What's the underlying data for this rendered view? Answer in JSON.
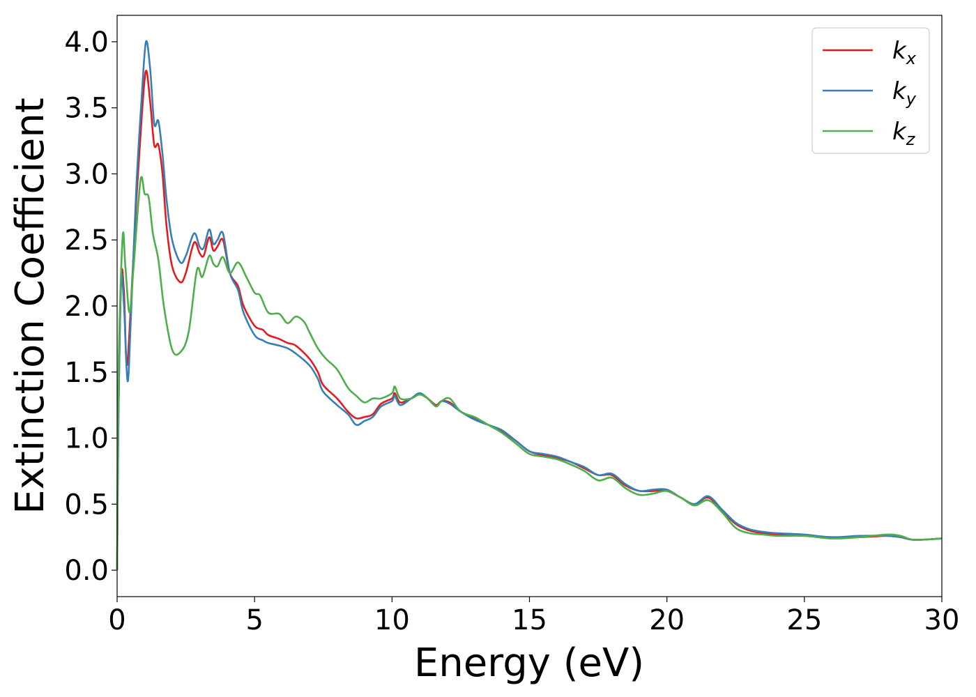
{
  "chart_data": {
    "type": "line",
    "xlabel": "Energy (eV)",
    "ylabel": "Extinction Coefficient",
    "xlim": [
      0,
      30
    ],
    "ylim": [
      -0.2,
      4.2
    ],
    "x_ticks": [
      "0",
      "5",
      "10",
      "15",
      "20",
      "25",
      "30"
    ],
    "x_tick_values": [
      0,
      5,
      10,
      15,
      20,
      25,
      30
    ],
    "y_ticks": [
      "0.0",
      "0.5",
      "1.0",
      "1.5",
      "2.0",
      "2.5",
      "3.0",
      "3.5",
      "4.0"
    ],
    "y_tick_values": [
      0,
      0.5,
      1.0,
      1.5,
      2.0,
      2.5,
      3.0,
      3.5,
      4.0
    ],
    "grid": false,
    "legend_position": "top-right",
    "series": [
      {
        "name": "k_x",
        "legend_main": "k",
        "legend_sub": "x",
        "color": "#e41a1c",
        "points": [
          [
            0,
            0
          ],
          [
            0.05,
            1.2
          ],
          [
            0.15,
            2.22
          ],
          [
            0.25,
            2.1
          ],
          [
            0.35,
            1.55
          ],
          [
            0.5,
            2.0
          ],
          [
            0.7,
            2.8
          ],
          [
            0.9,
            3.45
          ],
          [
            1.05,
            3.78
          ],
          [
            1.2,
            3.55
          ],
          [
            1.35,
            3.22
          ],
          [
            1.5,
            3.22
          ],
          [
            1.65,
            3.0
          ],
          [
            1.8,
            2.6
          ],
          [
            2.0,
            2.3
          ],
          [
            2.3,
            2.18
          ],
          [
            2.5,
            2.25
          ],
          [
            2.8,
            2.48
          ],
          [
            3.0,
            2.4
          ],
          [
            3.15,
            2.38
          ],
          [
            3.35,
            2.52
          ],
          [
            3.5,
            2.42
          ],
          [
            3.65,
            2.45
          ],
          [
            3.85,
            2.5
          ],
          [
            4.1,
            2.25
          ],
          [
            4.4,
            2.15
          ],
          [
            4.6,
            2.0
          ],
          [
            5.0,
            1.85
          ],
          [
            5.3,
            1.82
          ],
          [
            5.5,
            1.78
          ],
          [
            5.9,
            1.75
          ],
          [
            6.2,
            1.72
          ],
          [
            6.5,
            1.7
          ],
          [
            7.0,
            1.6
          ],
          [
            7.3,
            1.5
          ],
          [
            7.5,
            1.4
          ],
          [
            8.0,
            1.3
          ],
          [
            8.4,
            1.2
          ],
          [
            8.7,
            1.15
          ],
          [
            9.0,
            1.16
          ],
          [
            9.3,
            1.18
          ],
          [
            9.6,
            1.26
          ],
          [
            10.0,
            1.3
          ],
          [
            10.1,
            1.34
          ],
          [
            10.3,
            1.27
          ],
          [
            10.7,
            1.3
          ],
          [
            11.0,
            1.33
          ],
          [
            11.3,
            1.3
          ],
          [
            11.6,
            1.25
          ],
          [
            11.8,
            1.28
          ],
          [
            12.1,
            1.27
          ],
          [
            12.5,
            1.2
          ],
          [
            13.0,
            1.15
          ],
          [
            13.5,
            1.1
          ],
          [
            14.0,
            1.05
          ],
          [
            14.5,
            0.98
          ],
          [
            15.0,
            0.9
          ],
          [
            15.5,
            0.87
          ],
          [
            16.0,
            0.85
          ],
          [
            16.5,
            0.82
          ],
          [
            17.0,
            0.77
          ],
          [
            17.5,
            0.72
          ],
          [
            18.0,
            0.72
          ],
          [
            18.5,
            0.64
          ],
          [
            19.0,
            0.6
          ],
          [
            19.5,
            0.6
          ],
          [
            20.0,
            0.6
          ],
          [
            20.5,
            0.55
          ],
          [
            21.0,
            0.5
          ],
          [
            21.5,
            0.55
          ],
          [
            22.0,
            0.45
          ],
          [
            22.5,
            0.35
          ],
          [
            23.0,
            0.3
          ],
          [
            23.5,
            0.28
          ],
          [
            24.0,
            0.27
          ],
          [
            25.0,
            0.26
          ],
          [
            26.0,
            0.25
          ],
          [
            27.0,
            0.25
          ],
          [
            28.0,
            0.26
          ],
          [
            28.5,
            0.25
          ],
          [
            29.0,
            0.23
          ],
          [
            30.0,
            0.24
          ]
        ]
      },
      {
        "name": "k_y",
        "legend_main": "k",
        "legend_sub": "y",
        "color": "#377eb8",
        "points": [
          [
            0,
            0
          ],
          [
            0.05,
            1.2
          ],
          [
            0.15,
            2.2
          ],
          [
            0.25,
            2.0
          ],
          [
            0.38,
            1.43
          ],
          [
            0.5,
            1.9
          ],
          [
            0.7,
            2.9
          ],
          [
            0.9,
            3.6
          ],
          [
            1.05,
            4.0
          ],
          [
            1.2,
            3.8
          ],
          [
            1.35,
            3.38
          ],
          [
            1.5,
            3.4
          ],
          [
            1.65,
            3.15
          ],
          [
            1.8,
            2.8
          ],
          [
            2.0,
            2.5
          ],
          [
            2.3,
            2.33
          ],
          [
            2.5,
            2.38
          ],
          [
            2.8,
            2.55
          ],
          [
            3.0,
            2.45
          ],
          [
            3.15,
            2.44
          ],
          [
            3.35,
            2.58
          ],
          [
            3.5,
            2.47
          ],
          [
            3.65,
            2.5
          ],
          [
            3.85,
            2.55
          ],
          [
            4.1,
            2.25
          ],
          [
            4.4,
            2.12
          ],
          [
            4.6,
            1.95
          ],
          [
            5.0,
            1.78
          ],
          [
            5.3,
            1.74
          ],
          [
            5.5,
            1.72
          ],
          [
            5.9,
            1.7
          ],
          [
            6.2,
            1.68
          ],
          [
            6.5,
            1.64
          ],
          [
            7.0,
            1.55
          ],
          [
            7.3,
            1.45
          ],
          [
            7.5,
            1.35
          ],
          [
            8.0,
            1.25
          ],
          [
            8.4,
            1.18
          ],
          [
            8.7,
            1.1
          ],
          [
            9.0,
            1.13
          ],
          [
            9.3,
            1.16
          ],
          [
            9.6,
            1.24
          ],
          [
            10.0,
            1.28
          ],
          [
            10.1,
            1.32
          ],
          [
            10.3,
            1.25
          ],
          [
            10.7,
            1.3
          ],
          [
            11.0,
            1.34
          ],
          [
            11.3,
            1.3
          ],
          [
            11.6,
            1.24
          ],
          [
            11.8,
            1.28
          ],
          [
            12.1,
            1.26
          ],
          [
            12.5,
            1.2
          ],
          [
            13.0,
            1.14
          ],
          [
            13.5,
            1.1
          ],
          [
            14.0,
            1.06
          ],
          [
            14.5,
            0.98
          ],
          [
            15.0,
            0.9
          ],
          [
            15.5,
            0.88
          ],
          [
            16.0,
            0.86
          ],
          [
            16.5,
            0.82
          ],
          [
            17.0,
            0.78
          ],
          [
            17.5,
            0.72
          ],
          [
            18.0,
            0.73
          ],
          [
            18.5,
            0.65
          ],
          [
            19.0,
            0.6
          ],
          [
            19.5,
            0.61
          ],
          [
            20.0,
            0.61
          ],
          [
            20.5,
            0.55
          ],
          [
            21.0,
            0.5
          ],
          [
            21.5,
            0.56
          ],
          [
            22.0,
            0.46
          ],
          [
            22.5,
            0.36
          ],
          [
            23.0,
            0.31
          ],
          [
            23.5,
            0.29
          ],
          [
            24.0,
            0.28
          ],
          [
            25.0,
            0.27
          ],
          [
            26.0,
            0.25
          ],
          [
            27.0,
            0.26
          ],
          [
            28.0,
            0.26
          ],
          [
            28.5,
            0.25
          ],
          [
            29.0,
            0.23
          ],
          [
            30.0,
            0.24
          ]
        ]
      },
      {
        "name": "k_z",
        "legend_main": "k",
        "legend_sub": "z",
        "color": "#4daf4a",
        "points": [
          [
            0,
            0
          ],
          [
            0.05,
            1.5
          ],
          [
            0.2,
            2.52
          ],
          [
            0.3,
            2.3
          ],
          [
            0.45,
            1.95
          ],
          [
            0.6,
            2.3
          ],
          [
            0.85,
            2.95
          ],
          [
            1.0,
            2.85
          ],
          [
            1.15,
            2.82
          ],
          [
            1.3,
            2.55
          ],
          [
            1.5,
            2.35
          ],
          [
            1.7,
            2.0
          ],
          [
            2.0,
            1.67
          ],
          [
            2.3,
            1.65
          ],
          [
            2.6,
            1.8
          ],
          [
            2.9,
            2.27
          ],
          [
            3.1,
            2.22
          ],
          [
            3.35,
            2.38
          ],
          [
            3.5,
            2.32
          ],
          [
            3.65,
            2.3
          ],
          [
            3.85,
            2.37
          ],
          [
            4.1,
            2.25
          ],
          [
            4.4,
            2.33
          ],
          [
            4.7,
            2.22
          ],
          [
            5.0,
            2.1
          ],
          [
            5.2,
            2.08
          ],
          [
            5.5,
            1.95
          ],
          [
            5.9,
            1.94
          ],
          [
            6.2,
            1.87
          ],
          [
            6.5,
            1.92
          ],
          [
            6.8,
            1.88
          ],
          [
            7.0,
            1.8
          ],
          [
            7.3,
            1.68
          ],
          [
            7.6,
            1.6
          ],
          [
            8.0,
            1.52
          ],
          [
            8.4,
            1.38
          ],
          [
            8.7,
            1.32
          ],
          [
            9.0,
            1.27
          ],
          [
            9.3,
            1.3
          ],
          [
            9.6,
            1.3
          ],
          [
            10.0,
            1.34
          ],
          [
            10.1,
            1.39
          ],
          [
            10.3,
            1.3
          ],
          [
            10.7,
            1.3
          ],
          [
            11.0,
            1.33
          ],
          [
            11.3,
            1.3
          ],
          [
            11.6,
            1.24
          ],
          [
            11.8,
            1.28
          ],
          [
            12.1,
            1.3
          ],
          [
            12.5,
            1.2
          ],
          [
            13.0,
            1.16
          ],
          [
            13.5,
            1.1
          ],
          [
            14.0,
            1.04
          ],
          [
            14.5,
            0.96
          ],
          [
            15.0,
            0.88
          ],
          [
            15.5,
            0.86
          ],
          [
            16.0,
            0.84
          ],
          [
            16.5,
            0.8
          ],
          [
            17.0,
            0.75
          ],
          [
            17.5,
            0.68
          ],
          [
            18.0,
            0.7
          ],
          [
            18.5,
            0.62
          ],
          [
            19.0,
            0.57
          ],
          [
            19.5,
            0.58
          ],
          [
            20.0,
            0.6
          ],
          [
            20.5,
            0.55
          ],
          [
            21.0,
            0.49
          ],
          [
            21.5,
            0.53
          ],
          [
            22.0,
            0.44
          ],
          [
            22.5,
            0.32
          ],
          [
            23.0,
            0.28
          ],
          [
            23.5,
            0.27
          ],
          [
            24.0,
            0.26
          ],
          [
            25.0,
            0.26
          ],
          [
            26.0,
            0.24
          ],
          [
            27.0,
            0.25
          ],
          [
            28.0,
            0.27
          ],
          [
            28.5,
            0.26
          ],
          [
            29.0,
            0.23
          ],
          [
            30.0,
            0.24
          ]
        ]
      }
    ]
  }
}
